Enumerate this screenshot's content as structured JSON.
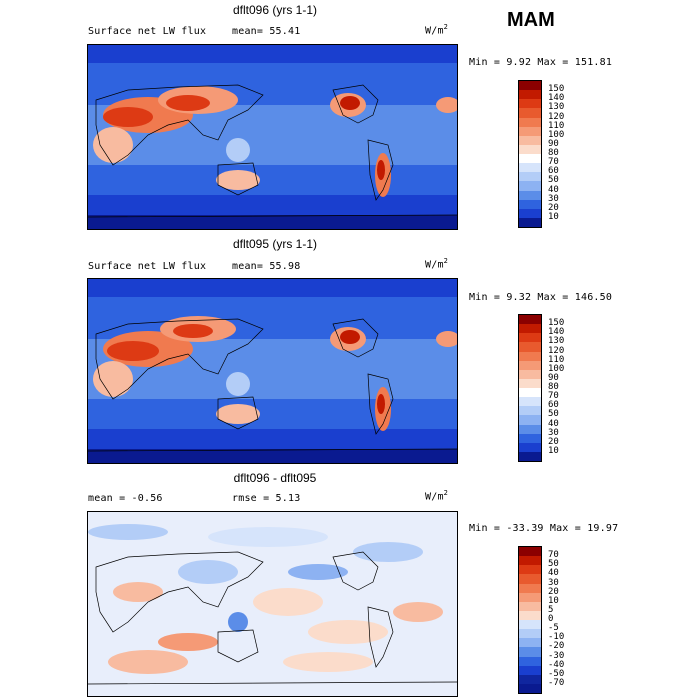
{
  "season": "MAM",
  "panels": [
    {
      "title": "dflt096 (yrs 1-1)",
      "left_label": "Surface net LW flux",
      "mean_label": "mean=  55.41",
      "units_base": "W/m",
      "units_sup": "2",
      "minmax": "Min =   9.92 Max = 151.81",
      "colorbar": {
        "labels": [
          "150",
          "140",
          "130",
          "120",
          "110",
          "100",
          "90",
          "80",
          "70",
          "60",
          "50",
          "40",
          "30",
          "20",
          "10"
        ],
        "colors": [
          "#8b0000",
          "#c21a00",
          "#dd3a14",
          "#e85a2e",
          "#f07a4f",
          "#f59a76",
          "#f8bba0",
          "#fbdccb",
          "#ffffff",
          "#d6e4fb",
          "#b3cdf7",
          "#8db2f2",
          "#5b8de8",
          "#2f63df",
          "#1a3fcf",
          "#0a1a90"
        ]
      }
    },
    {
      "title": "dflt095 (yrs 1-1)",
      "left_label": "Surface net LW flux",
      "mean_label": "mean=  55.98",
      "units_base": "W/m",
      "units_sup": "2",
      "minmax": "Min =   9.32 Max = 146.50",
      "colorbar": {
        "labels": [
          "150",
          "140",
          "130",
          "120",
          "110",
          "100",
          "90",
          "80",
          "70",
          "60",
          "50",
          "40",
          "30",
          "20",
          "10"
        ],
        "colors": [
          "#8b0000",
          "#c21a00",
          "#dd3a14",
          "#e85a2e",
          "#f07a4f",
          "#f59a76",
          "#f8bba0",
          "#fbdccb",
          "#ffffff",
          "#d6e4fb",
          "#b3cdf7",
          "#8db2f2",
          "#5b8de8",
          "#2f63df",
          "#1a3fcf",
          "#0a1a90"
        ]
      }
    },
    {
      "title": "dflt096 - dflt095",
      "left_label": "mean =   -0.56",
      "mean_label": "rmse =   5.13",
      "units_base": "W/m",
      "units_sup": "2",
      "minmax": "Min = -33.39 Max =  19.97",
      "colorbar": {
        "labels": [
          "70",
          "50",
          "40",
          "30",
          "20",
          "10",
          "5",
          "0",
          "-5",
          "-10",
          "-20",
          "-30",
          "-40",
          "-50",
          "-70"
        ],
        "colors": [
          "#8b0000",
          "#c21a00",
          "#dd3a14",
          "#e85a2e",
          "#f07a4f",
          "#f59a76",
          "#f8bba0",
          "#fbdccb",
          "#d6e4fb",
          "#b3cdf7",
          "#8db2f2",
          "#5b8de8",
          "#2f63df",
          "#1a3fcf",
          "#10269f",
          "#0a1a90"
        ]
      }
    }
  ],
  "chart_data": [
    {
      "type": "heatmap",
      "title": "dflt096 (yrs 1-1)",
      "variable": "Surface net LW flux",
      "units": "W/m2",
      "mean": 55.41,
      "min": 9.92,
      "max": 151.81,
      "levels": [
        10,
        20,
        30,
        40,
        50,
        60,
        70,
        80,
        90,
        100,
        110,
        120,
        130,
        140,
        150
      ]
    },
    {
      "type": "heatmap",
      "title": "dflt095 (yrs 1-1)",
      "variable": "Surface net LW flux",
      "units": "W/m2",
      "mean": 55.98,
      "min": 9.32,
      "max": 146.5,
      "levels": [
        10,
        20,
        30,
        40,
        50,
        60,
        70,
        80,
        90,
        100,
        110,
        120,
        130,
        140,
        150
      ]
    },
    {
      "type": "heatmap",
      "title": "dflt096 - dflt095",
      "units": "W/m2",
      "mean": -0.56,
      "rmse": 5.13,
      "min": -33.39,
      "max": 19.97,
      "levels": [
        -70,
        -50,
        -40,
        -30,
        -20,
        -10,
        -5,
        0,
        5,
        10,
        20,
        30,
        40,
        50,
        70
      ]
    }
  ]
}
